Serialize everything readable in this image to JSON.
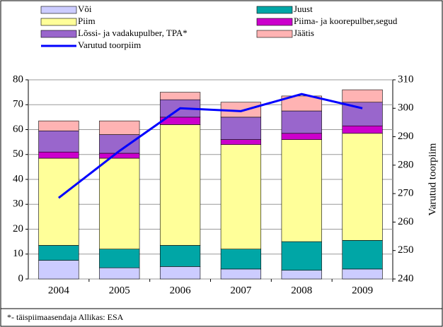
{
  "chart_data": {
    "type": "stacked-bar-line",
    "categories": [
      "2004",
      "2005",
      "2006",
      "2007",
      "2008",
      "2009"
    ],
    "series": [
      {
        "name": "Või",
        "color": "#ccccff",
        "values": [
          7.5,
          4.5,
          5,
          4,
          3.5,
          4
        ]
      },
      {
        "name": "Juust",
        "color": "#00a6a6",
        "values": [
          6,
          7.5,
          8.5,
          8,
          11.5,
          11.5
        ]
      },
      {
        "name": "Piim",
        "color": "#ffff99",
        "values": [
          35,
          36.5,
          48.5,
          42,
          41,
          43
        ]
      },
      {
        "name": "Piima- ja koorepulber,segud",
        "color": "#cc00cc",
        "values": [
          2.5,
          2,
          3,
          2,
          2.5,
          3
        ]
      },
      {
        "name": "Lõssi- ja vadakupulber, TPA*",
        "color": "#9966cc",
        "values": [
          8.5,
          7.5,
          7,
          9,
          9,
          9.5
        ]
      },
      {
        "name": "Jäätis",
        "color": "#ffb3b3",
        "values": [
          4,
          5.5,
          3,
          6,
          6,
          5
        ]
      },
      {
        "name": "Varutud toorpiim",
        "color": "#0000ff",
        "axis": "y2",
        "line": true,
        "values": [
          268.5,
          285,
          300,
          299,
          305,
          300
        ]
      }
    ],
    "ylim": [
      0,
      80
    ],
    "yticks": [
      0,
      10,
      20,
      30,
      40,
      50,
      60,
      70,
      80
    ],
    "y2lim": [
      240,
      310
    ],
    "y2ticks": [
      240,
      250,
      260,
      270,
      280,
      290,
      300,
      310
    ],
    "y2label": "Varutud toorpiim",
    "grid": true,
    "note": "*- täispiimaasendaja  Allikas: ESA"
  }
}
